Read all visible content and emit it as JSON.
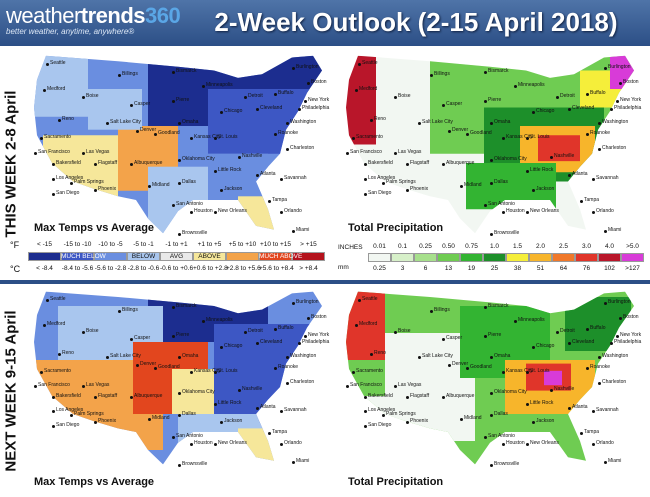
{
  "header": {
    "logo_main": "weather",
    "logo_trends": "trends",
    "logo_num": "360",
    "logo_tagline": "better weather, anytime, anywhere®",
    "title": "2-Week Outlook (2-15 April 2018)"
  },
  "rows": {
    "this_week": "THIS WEEK 2-8 April",
    "next_week": "NEXT WEEK 9-15 April"
  },
  "maps": {
    "temp_label": "Max Temps vs Average",
    "precip_label": "Total Precipitation",
    "cities": [
      "Seattle",
      "Billings",
      "Medford",
      "Bismarck",
      "Burlington",
      "Boise",
      "Minneapolis",
      "Boston",
      "Buffalo",
      "New York",
      "Detroit",
      "Philadelphia",
      "Chicago",
      "Casper",
      "Pierre",
      "Reno",
      "Salt Lake City",
      "Omaha",
      "Denver",
      "Cleveland",
      "Washington",
      "Sacramento",
      "Goodland",
      "Kansas City",
      "St. Louis",
      "San Francisco",
      "Las Vegas",
      "Bakersfield",
      "Roanoke",
      "Charleston",
      "Los Angeles",
      "Palm Springs",
      "Albuquerque",
      "Flagstaff",
      "Oklahoma City",
      "Nashville",
      "San Diego",
      "Phoenix",
      "Little Rock",
      "Atlanta",
      "Dallas",
      "Jackson",
      "Midland",
      "Savannah",
      "San Antonio",
      "Houston",
      "New Orleans",
      "Tampa",
      "Orlando",
      "Miami",
      "Brownsville"
    ]
  },
  "temp_legend": {
    "unit_f": "°F",
    "unit_c": "°C",
    "f_values": [
      "< -15",
      "-15 to -10",
      "-10 to -5",
      "-5 to -1",
      "-1 to +1",
      "+1 to +5",
      "+5 to +10",
      "+10 to +15",
      "> +15"
    ],
    "c_values": [
      "< -8.4",
      "-8.4 to -5.6",
      "-5.6 to -2.8",
      "-2.8 to -0.6",
      "-0.6 to +0.6",
      "+0.6 to +2.8",
      "+2.8 to +5.6",
      "+5.6 to +8.4",
      "> +8.4"
    ],
    "categories": [
      "MUCH BELOW",
      "BELOW",
      "AVG",
      "ABOVE",
      "MUCH ABOVE"
    ],
    "colors": [
      "#1c2d8f",
      "#3d57c4",
      "#6a8ee0",
      "#a9c6ee",
      "#e9e9e9",
      "#f6e79a",
      "#f3a34a",
      "#e2461e",
      "#b4121c"
    ]
  },
  "precip_legend": {
    "unit_in": "INCHES",
    "unit_mm": "mm",
    "inches": [
      "0.01",
      "0.1",
      "0.25",
      "0.50",
      "0.75",
      "1.0",
      "1.5",
      "2.0",
      "2.5",
      "3.0",
      "4.0",
      ">5.0"
    ],
    "mm": [
      "0.25",
      "3",
      "6",
      "13",
      "19",
      "25",
      "38",
      "51",
      "64",
      "76",
      "102",
      ">127"
    ],
    "colors": [
      "#f2f7f2",
      "#d7f0c9",
      "#a7e08c",
      "#6fcc52",
      "#33b432",
      "#1d8f2a",
      "#f5ee3a",
      "#f7b52b",
      "#f0782a",
      "#e0352a",
      "#b9162a",
      "#d83bd8"
    ]
  }
}
